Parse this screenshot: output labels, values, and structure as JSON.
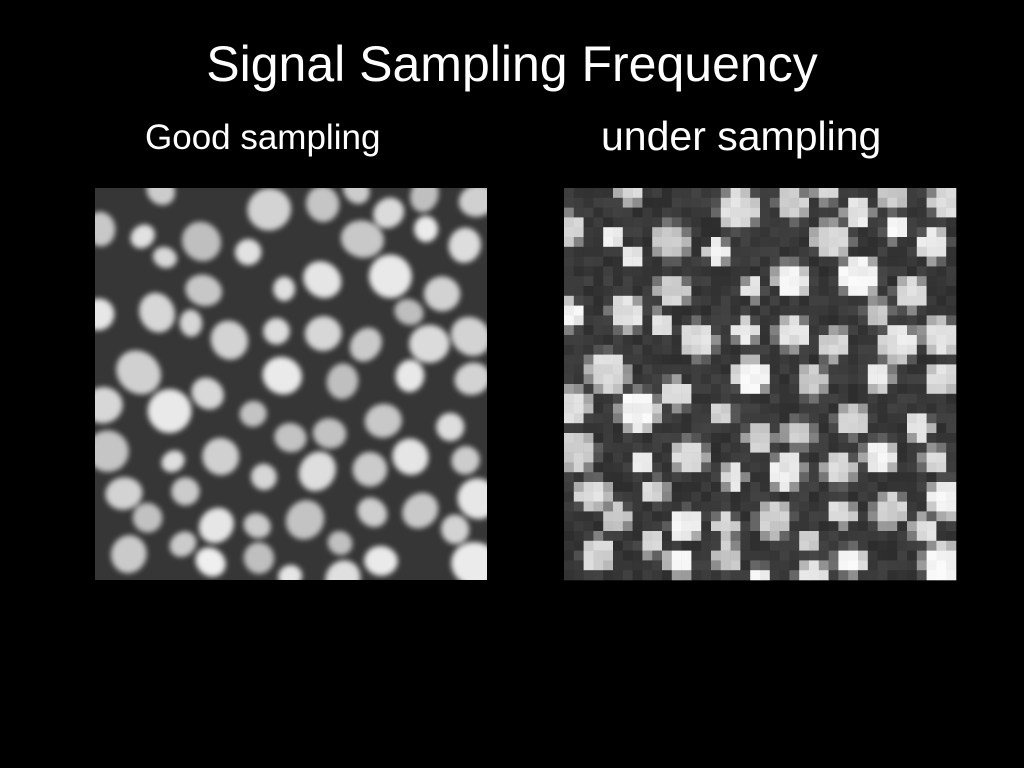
{
  "slide": {
    "title": "Signal Sampling Frequency",
    "panels": [
      {
        "label": "Good sampling"
      },
      {
        "label": "under sampling"
      }
    ]
  }
}
